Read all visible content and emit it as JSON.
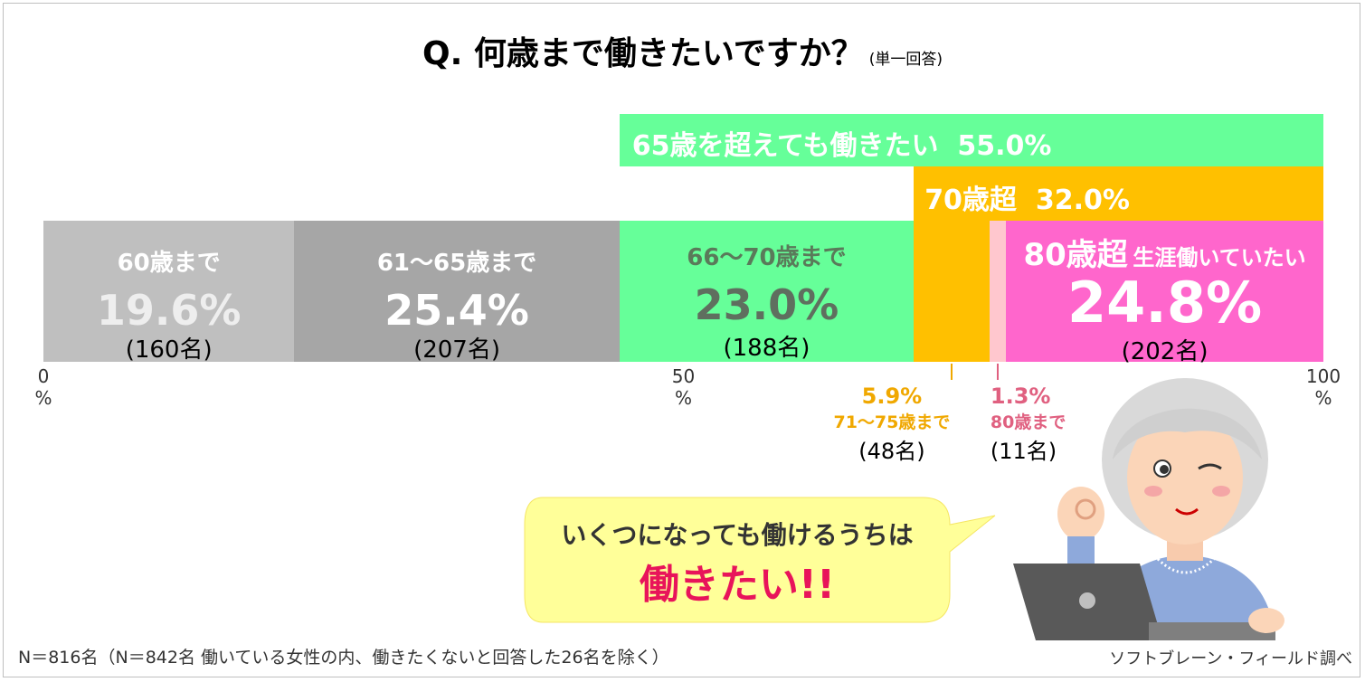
{
  "title": "Q.  何歳まで働きたいですか？",
  "title_note": "(単一回答)",
  "chart_data": {
    "type": "bar",
    "orientation": "horizontal-stacked",
    "xlim": [
      0,
      100
    ],
    "ticks": [
      {
        "value": 0,
        "label": "0\n%"
      },
      {
        "value": 50,
        "label": "50\n%"
      },
      {
        "value": 100,
        "label": "100\n%"
      }
    ],
    "segments": [
      {
        "label": "60歳まで",
        "value": 19.6,
        "value_text": "19.6%",
        "count": "(160名)",
        "color": "#bfbfbf"
      },
      {
        "label": "61～65歳まで",
        "value": 25.4,
        "value_text": "25.4%",
        "count": "(207名)",
        "color": "#a6a6a6"
      },
      {
        "label": "66～70歳まで",
        "value": 23.0,
        "value_text": "23.0%",
        "count": "(188名)",
        "color": "#66ff99"
      },
      {
        "label": "71～75歳まで",
        "value": 5.9,
        "value_text": "5.9%",
        "count": "(48名)",
        "color": "#ffc000"
      },
      {
        "label": "80歳まで",
        "value": 1.3,
        "value_text": "1.3%",
        "count": "(11名)",
        "color": "#ffc7ce"
      },
      {
        "label": "80歳超 生涯働いていたい",
        "label_main": "80歳超",
        "label_sub": "生涯働いていたい",
        "value": 24.8,
        "value_text": "24.8%",
        "count": "(202名)",
        "color": "#ff66cc"
      }
    ],
    "group_bands": [
      {
        "label": "65歳を超えても働きたい",
        "value_text": "55.0%",
        "value": 55.0,
        "start": 45.0,
        "color": "#66ff99"
      },
      {
        "label": "70歳超",
        "value_text": "32.0%",
        "value": 32.0,
        "start": 68.0,
        "color": "#ffc000"
      }
    ]
  },
  "bubble": {
    "line1": "いくつになっても働けるうちは",
    "line2": "働きたい!!"
  },
  "footnote": "N＝816名（N＝842名 働いている女性の内、働きたくないと回答した26名を除く）",
  "source": "ソフトブレーン・フィールド調べ",
  "colors": {
    "bubble_fill": "#ffff99",
    "emphasis": "#e8145a",
    "orange_text": "#f0a800",
    "pink_text": "#e06080"
  }
}
